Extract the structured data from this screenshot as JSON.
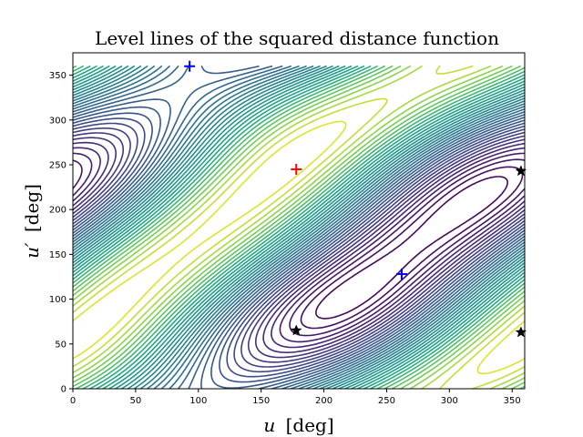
{
  "chart_data": {
    "type": "contour",
    "title": "Level lines of the squared distance function",
    "xlabel_var": "u",
    "xlabel_unit": "[deg]",
    "ylabel_var": "u′",
    "ylabel_unit": "[deg]",
    "xlim": [
      0,
      360
    ],
    "ylim": [
      0,
      375
    ],
    "xticks": [
      0,
      50,
      100,
      150,
      200,
      250,
      300,
      350
    ],
    "yticks": [
      0,
      50,
      100,
      150,
      200,
      250,
      300,
      350
    ],
    "grid": false,
    "colormap": "viridis",
    "markers": [
      {
        "kind": "plus",
        "color": "#ff0000",
        "x": 178,
        "y": 245
      },
      {
        "kind": "plus",
        "color": "#0000ff",
        "x": 93,
        "y": 360
      },
      {
        "kind": "plus",
        "color": "#0000ff",
        "x": 262,
        "y": 128
      },
      {
        "kind": "star",
        "color": "#000000",
        "x": 178,
        "y": 65
      },
      {
        "kind": "star",
        "color": "#000000",
        "x": 357,
        "y": 243
      },
      {
        "kind": "star",
        "color": "#000000",
        "x": 357,
        "y": 63
      }
    ]
  }
}
